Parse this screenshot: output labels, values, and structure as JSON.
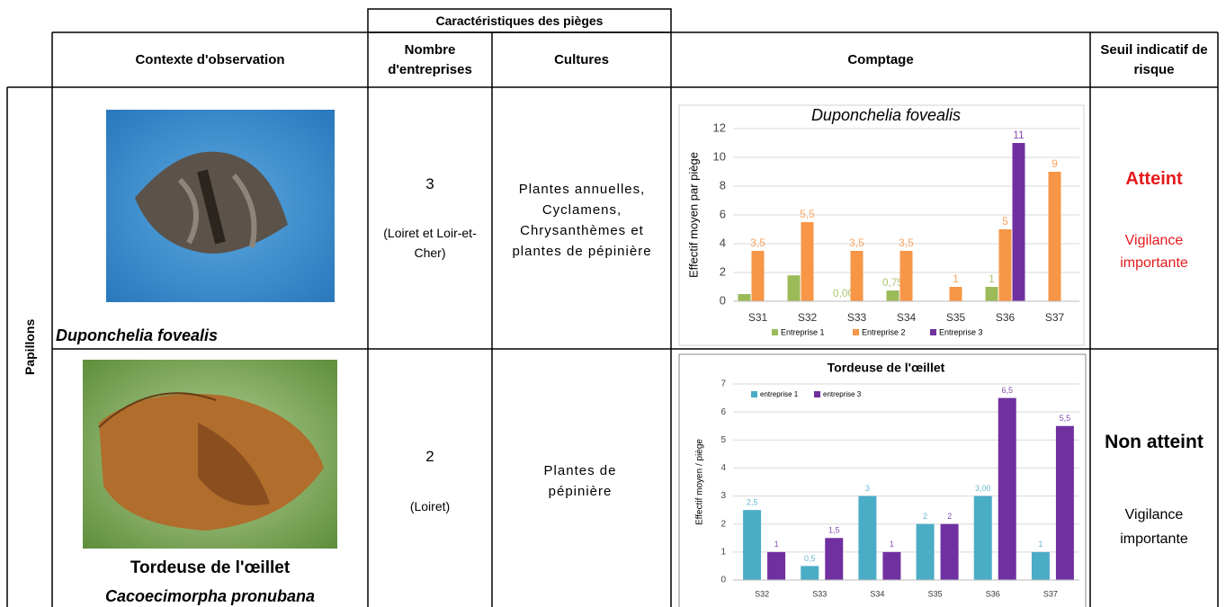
{
  "table": {
    "group_header": "Caractéristiques des pièges",
    "headers": [
      "Contexte d'observation",
      "Nombre d'entreprises",
      "Cultures",
      "Comptage",
      "Seuil indicatif de risque"
    ],
    "row_group": "Papillons",
    "rows": [
      {
        "name": "Duponchelia fovealis",
        "count": 3,
        "region": "(Loiret et Loir-et-Cher)",
        "crops": "Plantes annuelles, Cyclamens, Chrysanthèmes et plantes de pépinière",
        "risk": "Atteint",
        "advice": "Vigilance importante"
      },
      {
        "common_name": "Tordeuse de l'œillet",
        "name": "Cacoecimorpha pronubana",
        "count": 2,
        "region": "(Loiret)",
        "crops": "Plantes de pépinière",
        "risk": "Non atteint",
        "advice": "Vigilance importante"
      }
    ]
  },
  "chart_data": [
    {
      "type": "bar",
      "title": "Duponchelia fovealis",
      "y_label": "Effectif moyen par piège",
      "categories": [
        "S31",
        "S32",
        "S33",
        "S34",
        "S35",
        "S36",
        "S37"
      ],
      "series": [
        {
          "name": "Entreprise 1",
          "color": "#9bbb59",
          "values": [
            0.5,
            1.8,
            0,
            0.75,
            null,
            1,
            null
          ],
          "value_labels": [
            null,
            null,
            "0,00",
            "0,75",
            null,
            "1",
            null
          ]
        },
        {
          "name": "Entreprise 2",
          "color": "#f79646",
          "values": [
            3.5,
            5.5,
            3.5,
            3.5,
            1,
            5,
            9
          ],
          "value_labels": [
            "3,5",
            "5,5",
            "3,5",
            "3,5",
            "1",
            "5",
            "9"
          ]
        },
        {
          "name": "Entreprise 3",
          "color": "#7030a0",
          "values": [
            null,
            null,
            null,
            null,
            null,
            11,
            null
          ],
          "value_labels": [
            null,
            null,
            null,
            null,
            null,
            "11",
            null
          ]
        }
      ],
      "ylim": [
        0,
        12
      ],
      "yticks": [
        0,
        2,
        4,
        6,
        8,
        10,
        12
      ],
      "grid": true,
      "legend": "bottom"
    },
    {
      "type": "bar",
      "title": "Tordeuse de l'œillet",
      "y_label": "Effectif moyen / piège",
      "categories": [
        "S32",
        "S33",
        "S34",
        "S35",
        "S36",
        "S37"
      ],
      "series": [
        {
          "name": "entreprise 1",
          "color": "#4bacc6",
          "values": [
            2.5,
            0.5,
            3,
            2,
            3,
            1
          ],
          "value_labels": [
            "2,5",
            "0,5",
            "3",
            "2",
            "3,00",
            "1"
          ]
        },
        {
          "name": "entreprise 3",
          "color": "#7030a0",
          "values": [
            1,
            1.5,
            1,
            2,
            6.5,
            5.5
          ],
          "value_labels": [
            "1",
            "1,5",
            "1",
            "2",
            "6,5",
            "5,5"
          ]
        }
      ],
      "ylim": [
        0,
        7
      ],
      "yticks": [
        0,
        1,
        2,
        3,
        4,
        5,
        6,
        7
      ],
      "grid": true,
      "legend": "top-left"
    }
  ]
}
